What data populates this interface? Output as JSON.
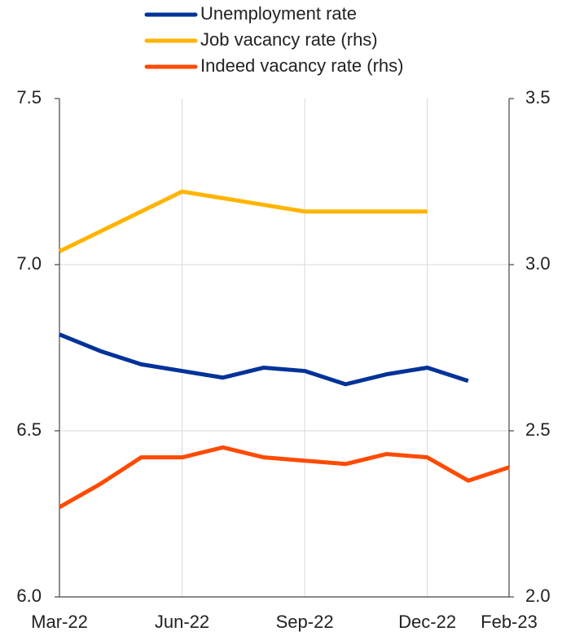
{
  "chart_data": {
    "type": "line",
    "categories": [
      "Mar-22",
      null,
      null,
      "Jun-22",
      null,
      null,
      "Sep-22",
      null,
      null,
      "Dec-22",
      null,
      "Feb-23"
    ],
    "series": [
      {
        "name": "Unemployment rate",
        "color": "#003299",
        "values": [
          6.79,
          6.74,
          6.7,
          6.68,
          6.66,
          6.69,
          6.68,
          6.64,
          6.67,
          6.69,
          6.65,
          null
        ]
      },
      {
        "name": "Job vacancy rate (rhs)",
        "color": "#ffb400",
        "axis": "y2",
        "values": [
          3.04,
          3.1,
          3.16,
          3.22,
          3.2,
          3.18,
          3.16,
          3.16,
          3.16,
          3.16,
          null,
          null
        ]
      },
      {
        "name": "Indeed vacancy rate (rhs)",
        "color": "#ff4b00",
        "axis": "y2",
        "values": [
          2.27,
          2.34,
          2.42,
          2.42,
          2.45,
          2.42,
          2.41,
          2.4,
          2.43,
          2.42,
          2.35,
          2.39
        ]
      }
    ],
    "ylim": [
      6.0,
      7.5
    ],
    "yticks": [
      {
        "value": 6.0,
        "label": "6.0"
      },
      {
        "value": 6.5,
        "label": "6.5"
      },
      {
        "value": 7.0,
        "label": "7.0"
      },
      {
        "value": 7.5,
        "label": "7.5"
      }
    ],
    "y2lim": [
      2.0,
      3.5
    ],
    "y2ticks": [
      {
        "value": 2.0,
        "label": "2.0"
      },
      {
        "value": 2.5,
        "label": "2.5"
      },
      {
        "value": 3.0,
        "label": "3.0"
      },
      {
        "value": 3.5,
        "label": "3.5"
      }
    ],
    "grid": true
  }
}
